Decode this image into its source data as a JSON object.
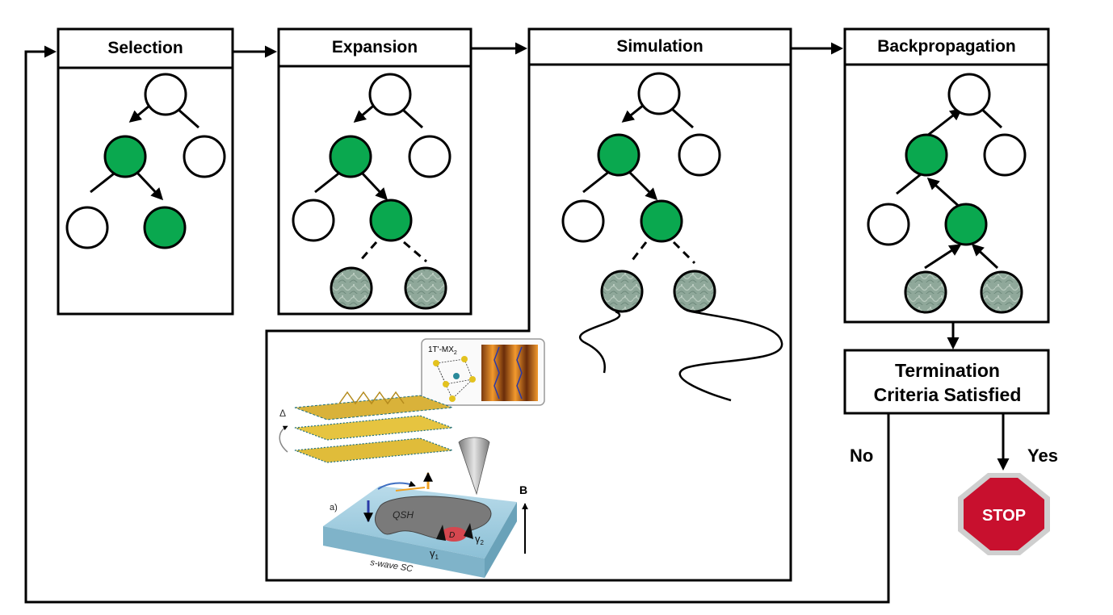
{
  "stages": [
    {
      "id": "selection",
      "title": "Selection"
    },
    {
      "id": "expansion",
      "title": "Expansion"
    },
    {
      "id": "simulation",
      "title": "Simulation"
    },
    {
      "id": "backpropagation",
      "title": "Backpropagation"
    }
  ],
  "termination": {
    "line1": "Termination",
    "line2": "Criteria Satisfied"
  },
  "branches": {
    "no": "No",
    "yes": "Yes"
  },
  "stop_sign": {
    "text": "STOP",
    "color": "#c8102e"
  },
  "figure": {
    "inset_label": "1T'-MX",
    "inset_subscript": "2",
    "delta": "Δ",
    "panel_label": "a)",
    "field_label": "B",
    "qsh_label": "QSH",
    "d_label": "D",
    "gamma1": "γ",
    "gamma1_sub": "1",
    "gamma2": "γ",
    "gamma2_sub": "2",
    "substrate_label": "s-wave SC"
  },
  "colors": {
    "selected_node": "#0aa84f",
    "leaf_node": "#8fa89a",
    "stop": "#c8102e"
  }
}
